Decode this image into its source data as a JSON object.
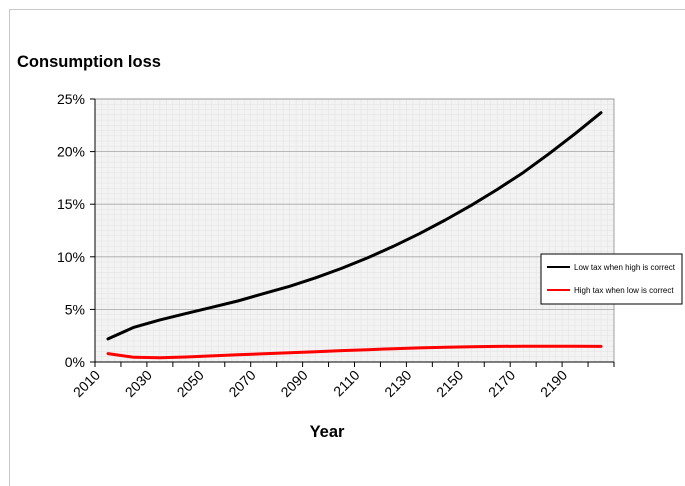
{
  "chart_data": {
    "type": "line",
    "title": "Consumption loss",
    "xlabel": "Year",
    "ylabel": "",
    "xlim": [
      2010,
      2210
    ],
    "ylim": [
      0,
      0.25
    ],
    "x_ticks": [
      2010,
      2030,
      2050,
      2070,
      2090,
      2110,
      2130,
      2150,
      2170,
      2190
    ],
    "x_tick_labels": [
      "2010",
      "2030",
      "2050",
      "2070",
      "2090",
      "2110",
      "2130",
      "2150",
      "2170",
      "2190"
    ],
    "y_ticks": [
      0,
      0.05,
      0.1,
      0.15,
      0.2,
      0.25
    ],
    "y_tick_labels": [
      "0%",
      "5%",
      "10%",
      "15%",
      "20%",
      "25%"
    ],
    "grid": true,
    "legend_position": "right",
    "series": [
      {
        "name": "Low tax when high is correct",
        "color": "#000000",
        "x": [
          2015,
          2025,
          2035,
          2045,
          2055,
          2065,
          2075,
          2085,
          2095,
          2105,
          2115,
          2125,
          2135,
          2145,
          2155,
          2165,
          2175,
          2185,
          2195,
          2205
        ],
        "y": [
          0.022,
          0.033,
          0.04,
          0.046,
          0.052,
          0.058,
          0.065,
          0.072,
          0.08,
          0.089,
          0.099,
          0.11,
          0.122,
          0.135,
          0.149,
          0.164,
          0.18,
          0.198,
          0.217,
          0.237
        ]
      },
      {
        "name": "High tax when low is correct",
        "color": "#ff0000",
        "x": [
          2015,
          2025,
          2035,
          2045,
          2055,
          2065,
          2075,
          2085,
          2095,
          2105,
          2115,
          2125,
          2135,
          2145,
          2155,
          2165,
          2175,
          2185,
          2195,
          2205
        ],
        "y": [
          0.008,
          0.0045,
          0.004,
          0.0048,
          0.0058,
          0.0068,
          0.0078,
          0.0088,
          0.0098,
          0.0108,
          0.0117,
          0.0126,
          0.0134,
          0.014,
          0.0145,
          0.0148,
          0.015,
          0.015,
          0.0149,
          0.0148
        ]
      }
    ]
  }
}
